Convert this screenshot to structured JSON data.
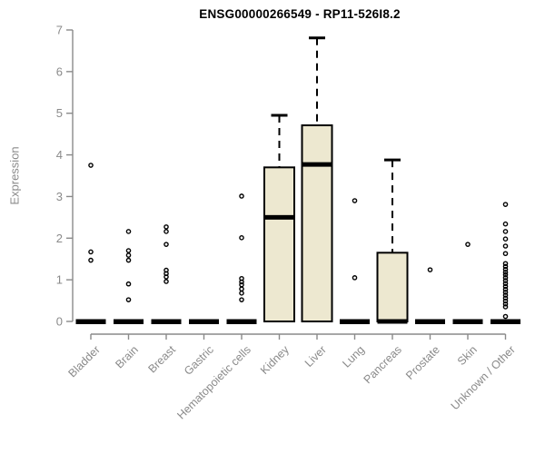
{
  "chart_data": {
    "type": "boxplot",
    "title": "ENSG00000266549 - RP11-526I8.2",
    "ylabel": "Expression",
    "xlabel": "",
    "ylim": [
      0,
      7
    ],
    "yticks": [
      0,
      1,
      2,
      3,
      4,
      5,
      6,
      7
    ],
    "grid": false,
    "legend": "none",
    "colors": {
      "box_fill": "#EDE8D0",
      "box_stroke": "#000000",
      "axis": "#8a8a8a",
      "label_text": "#8a8a8a",
      "title_text": "#000000"
    },
    "categories": [
      "Bladder",
      "Brain",
      "Breast",
      "Gastric",
      "Hematopoietic cells",
      "Kidney",
      "Liver",
      "Lung",
      "Pancreas",
      "Prostate",
      "Skin",
      "Unknown / Other"
    ],
    "series": [
      {
        "name": "Bladder",
        "whisker_low": 0,
        "q1": 0,
        "median": 0,
        "q3": 0,
        "whisker_high": 0,
        "outliers": [
          1.47,
          1.67,
          3.75
        ]
      },
      {
        "name": "Brain",
        "whisker_low": 0,
        "q1": 0,
        "median": 0,
        "q3": 0,
        "whisker_high": 0,
        "outliers": [
          0.52,
          0.9,
          1.47,
          1.59,
          1.7,
          2.16
        ]
      },
      {
        "name": "Breast",
        "whisker_low": 0,
        "q1": 0,
        "median": 0,
        "q3": 0,
        "whisker_high": 0,
        "outliers": [
          0.96,
          1.07,
          1.15,
          1.23,
          1.85,
          2.16,
          2.27
        ]
      },
      {
        "name": "Gastric",
        "whisker_low": 0,
        "q1": 0,
        "median": 0,
        "q3": 0,
        "whisker_high": 0,
        "outliers": []
      },
      {
        "name": "Hematopoietic cells",
        "whisker_low": 0,
        "q1": 0,
        "median": 0,
        "q3": 0,
        "whisker_high": 0,
        "outliers": [
          0.52,
          0.68,
          0.78,
          0.88,
          0.95,
          1.03,
          2.01,
          3.01
        ]
      },
      {
        "name": "Kidney",
        "whisker_low": 0,
        "q1": 0,
        "median": 2.5,
        "q3": 3.7,
        "whisker_high": 4.95,
        "outliers": []
      },
      {
        "name": "Liver",
        "whisker_low": 0,
        "q1": 0,
        "median": 3.77,
        "q3": 4.71,
        "whisker_high": 6.81,
        "outliers": []
      },
      {
        "name": "Lung",
        "whisker_low": 0,
        "q1": 0,
        "median": 0,
        "q3": 0,
        "whisker_high": 0,
        "outliers": [
          1.05,
          2.9
        ]
      },
      {
        "name": "Pancreas",
        "whisker_low": 0,
        "q1": 0,
        "median": 0,
        "q3": 1.65,
        "whisker_high": 3.88,
        "outliers": []
      },
      {
        "name": "Prostate",
        "whisker_low": 0,
        "q1": 0,
        "median": 0,
        "q3": 0,
        "whisker_high": 0,
        "outliers": [
          1.24
        ]
      },
      {
        "name": "Skin",
        "whisker_low": 0,
        "q1": 0,
        "median": 0,
        "q3": 0,
        "whisker_high": 0,
        "outliers": [
          1.85
        ]
      },
      {
        "name": "Unknown / Other",
        "whisker_low": 0,
        "q1": 0,
        "median": 0,
        "q3": 0,
        "whisker_high": 0,
        "outliers": [
          0.12,
          0.35,
          0.42,
          0.49,
          0.56,
          0.63,
          0.7,
          0.77,
          0.84,
          0.91,
          0.98,
          1.05,
          1.12,
          1.18,
          1.25,
          1.32,
          1.39,
          1.63,
          1.81,
          1.98,
          2.16,
          2.34,
          2.81
        ]
      }
    ]
  }
}
